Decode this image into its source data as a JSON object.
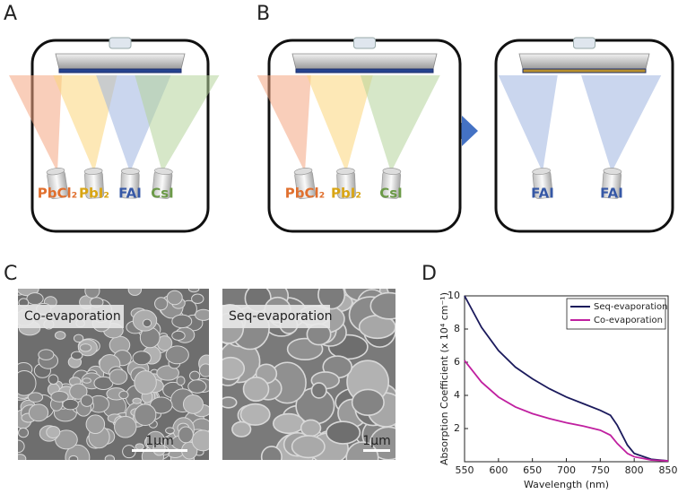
{
  "figure": {
    "a": {
      "label": "A",
      "sources": [
        "PbCl₂",
        "PbI₂",
        "FAI",
        "CsI"
      ]
    },
    "b": {
      "label": "B",
      "chamber1_sources": [
        "PbCl₂",
        "PbI₂",
        "CsI"
      ],
      "chamber2_sources": [
        "FAI",
        "FAI"
      ]
    },
    "c": {
      "label": "C",
      "images": [
        {
          "caption": "Co-evaporation",
          "scale_bar": "1μm"
        },
        {
          "caption": "Seq-evaporation",
          "scale_bar": "1μm"
        }
      ]
    },
    "d": {
      "label": "D"
    }
  },
  "chart_data": {
    "type": "line",
    "x": [
      550,
      575,
      600,
      625,
      650,
      675,
      700,
      725,
      750,
      765,
      775,
      790,
      800,
      825,
      850
    ],
    "series": [
      {
        "name": "Seq-evaporation",
        "color": "#1b1a5c",
        "values": [
          10,
          8.1,
          6.7,
          5.7,
          5.0,
          4.4,
          3.9,
          3.5,
          3.1,
          2.8,
          2.2,
          1.0,
          0.5,
          0.15,
          0.05
        ]
      },
      {
        "name": "Co-evaporation",
        "color": "#c020a0",
        "values": [
          6.1,
          4.8,
          3.9,
          3.3,
          2.9,
          2.6,
          2.35,
          2.15,
          1.9,
          1.6,
          1.1,
          0.5,
          0.3,
          0.1,
          0.05
        ]
      }
    ],
    "xlabel": "Wavelength (nm)",
    "ylabel": "Absorption Coefficient (x 10⁴ cm⁻¹)",
    "xlim": [
      550,
      850
    ],
    "xticks": [
      550,
      600,
      650,
      700,
      750,
      800,
      850
    ],
    "ylim": [
      0,
      10
    ],
    "yticks": [
      2,
      4,
      6,
      8,
      10
    ],
    "legend": "upper right"
  }
}
